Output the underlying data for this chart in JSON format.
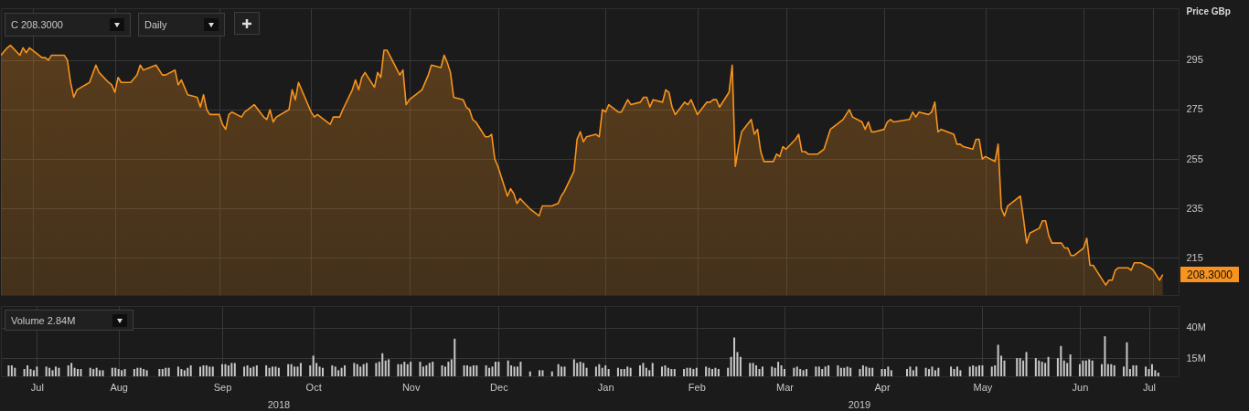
{
  "chart_data": [
    {
      "type": "area",
      "ylabel": "Price GBp",
      "color": "#f7931e",
      "grid": true,
      "tick_labels": "y",
      "annotations": [
        "C 208.3000",
        "Daily",
        "208.3000"
      ],
      "xlim": [
        "2018-07-10",
        "2019-07-17"
      ],
      "ylim": [
        200,
        316
      ],
      "yticks": [
        215,
        235,
        255,
        275,
        295
      ],
      "x": [
        "2018-07-10",
        "2018-07-12",
        "2018-07-13",
        "2018-07-16",
        "2018-07-17",
        "2018-07-18",
        "2018-07-19",
        "2018-07-23",
        "2018-07-24",
        "2018-07-25",
        "2018-07-26",
        "2018-07-30",
        "2018-07-31",
        "2018-08-01",
        "2018-08-02",
        "2018-08-03",
        "2018-08-07",
        "2018-08-09",
        "2018-08-10",
        "2018-08-13",
        "2018-08-14",
        "2018-08-15",
        "2018-08-16",
        "2018-08-17",
        "2018-08-20",
        "2018-08-22",
        "2018-08-23",
        "2018-08-24",
        "2018-08-28",
        "2018-08-30",
        "2018-08-31",
        "2018-09-03",
        "2018-09-04",
        "2018-09-05",
        "2018-09-06",
        "2018-09-07",
        "2018-09-10",
        "2018-09-11",
        "2018-09-12",
        "2018-09-13",
        "2018-09-14",
        "2018-09-17",
        "2018-09-18",
        "2018-09-19",
        "2018-09-20",
        "2018-09-21",
        "2018-09-24",
        "2018-09-25",
        "2018-09-27",
        "2018-09-28",
        "2018-10-01",
        "2018-10-02",
        "2018-10-03",
        "2018-10-04",
        "2018-10-05",
        "2018-10-09",
        "2018-10-10",
        "2018-10-11",
        "2018-10-12",
        "2018-10-16",
        "2018-10-17",
        "2018-10-18",
        "2018-10-19",
        "2018-10-22",
        "2018-10-23",
        "2018-10-25",
        "2018-10-26",
        "2018-10-29",
        "2018-10-30",
        "2018-10-31",
        "2018-11-01",
        "2018-11-02",
        "2018-11-05",
        "2018-11-06",
        "2018-11-07",
        "2018-11-08",
        "2018-11-09",
        "2018-11-13",
        "2018-11-14",
        "2018-11-15",
        "2018-11-16",
        "2018-11-20",
        "2018-11-22",
        "2018-11-23",
        "2018-11-26",
        "2018-11-27",
        "2018-11-28",
        "2018-11-29",
        "2018-11-30",
        "2018-12-03",
        "2018-12-04",
        "2018-12-05",
        "2018-12-06",
        "2018-12-07",
        "2018-12-10",
        "2018-12-11",
        "2018-12-12",
        "2018-12-13",
        "2018-12-14",
        "2018-12-17",
        "2018-12-18",
        "2018-12-19",
        "2018-12-20",
        "2018-12-21",
        "2018-12-24",
        "2018-12-27",
        "2018-12-28",
        "2018-12-31",
        "2019-01-02",
        "2019-01-03",
        "2019-01-04",
        "2019-01-07",
        "2019-01-08",
        "2019-01-09",
        "2019-01-10",
        "2019-01-11",
        "2019-01-14",
        "2019-01-15",
        "2019-01-16",
        "2019-01-17",
        "2019-01-18",
        "2019-01-21",
        "2019-01-22",
        "2019-01-24",
        "2019-01-25",
        "2019-01-28",
        "2019-01-29",
        "2019-01-30",
        "2019-01-31",
        "2019-02-01",
        "2019-02-04",
        "2019-02-05",
        "2019-02-06",
        "2019-02-07",
        "2019-02-08",
        "2019-02-11",
        "2019-02-12",
        "2019-02-13",
        "2019-02-14",
        "2019-02-15",
        "2019-02-18",
        "2019-02-19",
        "2019-02-20",
        "2019-02-21",
        "2019-02-22",
        "2019-02-25",
        "2019-02-26",
        "2019-02-27",
        "2019-02-28",
        "2019-03-01",
        "2019-03-04",
        "2019-03-05",
        "2019-03-06",
        "2019-03-07",
        "2019-03-08",
        "2019-03-11",
        "2019-03-12",
        "2019-03-13",
        "2019-03-14",
        "2019-03-15",
        "2019-03-18",
        "2019-03-19",
        "2019-03-20",
        "2019-03-21",
        "2019-03-22",
        "2019-03-25",
        "2019-03-26",
        "2019-03-27",
        "2019-03-28",
        "2019-03-29",
        "2019-04-01",
        "2019-04-02",
        "2019-04-03",
        "2019-04-04",
        "2019-04-05",
        "2019-04-08",
        "2019-04-09",
        "2019-04-10",
        "2019-04-11",
        "2019-04-12",
        "2019-04-15",
        "2019-04-16",
        "2019-04-17",
        "2019-04-18",
        "2019-04-23",
        "2019-04-24",
        "2019-04-25",
        "2019-04-26",
        "2019-04-29",
        "2019-04-30",
        "2019-05-01",
        "2019-05-02",
        "2019-05-03",
        "2019-05-07",
        "2019-05-08",
        "2019-05-09",
        "2019-05-10",
        "2019-05-13",
        "2019-05-14",
        "2019-05-15",
        "2019-05-16",
        "2019-05-17",
        "2019-05-20",
        "2019-05-21",
        "2019-05-22",
        "2019-05-23",
        "2019-05-24",
        "2019-05-28",
        "2019-05-29",
        "2019-05-30",
        "2019-05-31",
        "2019-06-03",
        "2019-06-04",
        "2019-06-05",
        "2019-06-06",
        "2019-06-07",
        "2019-06-10",
        "2019-06-11",
        "2019-06-12",
        "2019-06-13",
        "2019-06-14",
        "2019-06-17",
        "2019-06-18",
        "2019-06-19",
        "2019-06-20",
        "2019-06-21",
        "2019-06-24",
        "2019-06-25",
        "2019-06-26",
        "2019-06-27",
        "2019-06-28",
        "2019-07-01",
        "2019-07-02",
        "2019-07-03",
        "2019-07-04",
        "2019-07-05",
        "2019-07-08",
        "2019-07-09",
        "2019-07-10",
        "2019-07-11",
        "2019-07-12"
      ],
      "values": [
        297,
        300,
        301,
        297,
        300,
        298,
        300,
        296,
        296,
        295,
        297,
        297,
        295,
        286,
        280,
        283,
        286,
        293,
        290,
        286,
        285,
        282,
        288,
        286,
        286,
        289,
        293,
        291,
        293,
        289,
        289,
        291,
        285,
        287,
        284,
        281,
        280,
        276,
        281,
        275,
        273,
        273,
        269,
        267,
        273,
        274,
        272,
        274,
        276,
        277,
        272,
        271,
        275,
        270,
        272,
        275,
        283,
        279,
        286,
        274,
        272,
        273,
        272,
        269,
        272,
        272,
        275,
        283,
        287,
        283,
        288,
        290,
        284,
        290,
        288,
        299,
        299,
        289,
        291,
        277,
        279,
        283,
        289,
        293,
        292,
        297,
        294,
        290,
        280,
        279,
        276,
        275,
        271,
        270,
        264,
        264,
        265,
        255,
        252,
        240,
        243,
        241,
        237,
        239,
        235,
        232,
        236,
        236,
        237,
        240,
        242,
        250,
        263,
        266,
        262,
        264,
        265,
        264,
        275,
        274,
        277,
        274,
        274,
        279,
        277,
        278,
        280,
        280,
        276,
        279,
        278,
        283,
        282,
        276,
        273,
        278,
        277,
        279,
        276,
        273,
        278,
        278,
        279,
        279,
        276,
        282,
        293,
        252,
        260,
        266,
        271,
        265,
        267,
        258,
        254,
        254,
        257,
        256,
        260,
        259,
        263,
        265,
        258,
        258,
        257,
        257,
        258,
        259,
        263,
        267,
        270,
        271,
        273,
        275,
        272,
        270,
        267,
        270,
        266,
        266,
        267,
        270,
        271,
        270,
        271,
        274,
        272,
        274,
        273,
        274,
        278,
        266,
        267,
        265,
        261,
        261,
        260,
        259,
        263,
        263,
        255,
        256,
        254,
        261,
        235,
        232,
        236,
        240,
        231,
        221,
        225,
        227,
        230,
        230,
        224,
        221,
        221,
        219,
        219,
        216,
        216,
        219,
        223,
        212,
        212,
        210,
        204,
        206,
        206,
        210,
        211,
        211,
        210,
        213,
        213,
        213,
        211,
        210,
        208,
        206,
        208.3
      ]
    },
    {
      "type": "bar",
      "title": "Volume 2.84M",
      "color": "#c8c8c8",
      "grid": true,
      "annotations": [
        "2018",
        "2019"
      ],
      "xlim": [
        "2018-07-10",
        "2019-07-17"
      ],
      "xticks": [
        {
          "value": "2018-07-20",
          "label": "Jul"
        },
        {
          "value": "2018-08-15",
          "label": "Aug"
        },
        {
          "value": "2018-09-17",
          "label": "Sep"
        },
        {
          "value": "2018-10-16",
          "label": "Oct"
        },
        {
          "value": "2018-11-16",
          "label": "Nov"
        },
        {
          "value": "2018-12-14",
          "label": "Dec"
        },
        {
          "value": "2019-01-17",
          "label": "Jan"
        },
        {
          "value": "2019-02-15",
          "label": "Feb"
        },
        {
          "value": "2019-03-15",
          "label": "Mar"
        },
        {
          "value": "2019-04-15",
          "label": "Apr"
        },
        {
          "value": "2019-05-17",
          "label": "May"
        },
        {
          "value": "2019-06-17",
          "label": "Jun"
        },
        {
          "value": "2019-07-09",
          "label": "Jul"
        }
      ],
      "ylim": [
        0,
        58
      ],
      "yticks": [
        {
          "value": 15,
          "label": "15M"
        },
        {
          "value": 40,
          "label": "40M"
        }
      ],
      "x": [
        "2018-07-11",
        "2018-07-12",
        "2018-07-13",
        "2018-07-16",
        "2018-07-17",
        "2018-07-18",
        "2018-07-19",
        "2018-07-20",
        "2018-07-23",
        "2018-07-24",
        "2018-07-25",
        "2018-07-26",
        "2018-07-27",
        "2018-07-30",
        "2018-07-31",
        "2018-08-01",
        "2018-08-02",
        "2018-08-03",
        "2018-08-06",
        "2018-08-07",
        "2018-08-08",
        "2018-08-09",
        "2018-08-10",
        "2018-08-13",
        "2018-08-14",
        "2018-08-15",
        "2018-08-16",
        "2018-08-17",
        "2018-08-20",
        "2018-08-21",
        "2018-08-22",
        "2018-08-23",
        "2018-08-24",
        "2018-08-28",
        "2018-08-29",
        "2018-08-30",
        "2018-08-31",
        "2018-09-03",
        "2018-09-04",
        "2018-09-05",
        "2018-09-06",
        "2018-09-07",
        "2018-09-10",
        "2018-09-11",
        "2018-09-12",
        "2018-09-13",
        "2018-09-14",
        "2018-09-17",
        "2018-09-18",
        "2018-09-19",
        "2018-09-20",
        "2018-09-21",
        "2018-09-24",
        "2018-09-25",
        "2018-09-26",
        "2018-09-27",
        "2018-09-28",
        "2018-10-01",
        "2018-10-02",
        "2018-10-03",
        "2018-10-04",
        "2018-10-05",
        "2018-10-08",
        "2018-10-09",
        "2018-10-10",
        "2018-10-11",
        "2018-10-12",
        "2018-10-15",
        "2018-10-16",
        "2018-10-17",
        "2018-10-18",
        "2018-10-19",
        "2018-10-22",
        "2018-10-23",
        "2018-10-24",
        "2018-10-25",
        "2018-10-26",
        "2018-10-29",
        "2018-10-30",
        "2018-10-31",
        "2018-11-01",
        "2018-11-02",
        "2018-11-05",
        "2018-11-06",
        "2018-11-07",
        "2018-11-08",
        "2018-11-09",
        "2018-11-12",
        "2018-11-13",
        "2018-11-14",
        "2018-11-15",
        "2018-11-16",
        "2018-11-19",
        "2018-11-20",
        "2018-11-21",
        "2018-11-22",
        "2018-11-23",
        "2018-11-26",
        "2018-11-27",
        "2018-11-28",
        "2018-11-29",
        "2018-11-30",
        "2018-12-03",
        "2018-12-04",
        "2018-12-05",
        "2018-12-06",
        "2018-12-07",
        "2018-12-10",
        "2018-12-11",
        "2018-12-12",
        "2018-12-13",
        "2018-12-14",
        "2018-12-17",
        "2018-12-18",
        "2018-12-19",
        "2018-12-20",
        "2018-12-21",
        "2018-12-24",
        "2018-12-27",
        "2018-12-28",
        "2018-12-31",
        "2019-01-02",
        "2019-01-03",
        "2019-01-04",
        "2019-01-07",
        "2019-01-08",
        "2019-01-09",
        "2019-01-10",
        "2019-01-11",
        "2019-01-14",
        "2019-01-15",
        "2019-01-16",
        "2019-01-17",
        "2019-01-18",
        "2019-01-21",
        "2019-01-22",
        "2019-01-23",
        "2019-01-24",
        "2019-01-25",
        "2019-01-28",
        "2019-01-29",
        "2019-01-30",
        "2019-01-31",
        "2019-02-01",
        "2019-02-04",
        "2019-02-05",
        "2019-02-06",
        "2019-02-07",
        "2019-02-08",
        "2019-02-11",
        "2019-02-12",
        "2019-02-13",
        "2019-02-14",
        "2019-02-15",
        "2019-02-18",
        "2019-02-19",
        "2019-02-20",
        "2019-02-21",
        "2019-02-22",
        "2019-02-25",
        "2019-02-26",
        "2019-02-27",
        "2019-02-28",
        "2019-03-01",
        "2019-03-04",
        "2019-03-05",
        "2019-03-06",
        "2019-03-07",
        "2019-03-08",
        "2019-03-11",
        "2019-03-12",
        "2019-03-13",
        "2019-03-14",
        "2019-03-15",
        "2019-03-18",
        "2019-03-19",
        "2019-03-20",
        "2019-03-21",
        "2019-03-22",
        "2019-03-25",
        "2019-03-26",
        "2019-03-27",
        "2019-03-28",
        "2019-03-29",
        "2019-04-01",
        "2019-04-02",
        "2019-04-03",
        "2019-04-04",
        "2019-04-05",
        "2019-04-08",
        "2019-04-09",
        "2019-04-10",
        "2019-04-11",
        "2019-04-12",
        "2019-04-15",
        "2019-04-16",
        "2019-04-17",
        "2019-04-18",
        "2019-04-23",
        "2019-04-24",
        "2019-04-25",
        "2019-04-26",
        "2019-04-29",
        "2019-04-30",
        "2019-05-01",
        "2019-05-02",
        "2019-05-03",
        "2019-05-07",
        "2019-05-08",
        "2019-05-09",
        "2019-05-10",
        "2019-05-13",
        "2019-05-14",
        "2019-05-15",
        "2019-05-16",
        "2019-05-17",
        "2019-05-20",
        "2019-05-21",
        "2019-05-22",
        "2019-05-23",
        "2019-05-24",
        "2019-05-28",
        "2019-05-29",
        "2019-05-30",
        "2019-05-31",
        "2019-06-03",
        "2019-06-04",
        "2019-06-05",
        "2019-06-06",
        "2019-06-07",
        "2019-06-10",
        "2019-06-11",
        "2019-06-12",
        "2019-06-13",
        "2019-06-14",
        "2019-06-17",
        "2019-06-18",
        "2019-06-19",
        "2019-06-20",
        "2019-06-21",
        "2019-06-24",
        "2019-06-25",
        "2019-06-26",
        "2019-06-27",
        "2019-06-28",
        "2019-07-01",
        "2019-07-02",
        "2019-07-03",
        "2019-07-04",
        "2019-07-05",
        "2019-07-08",
        "2019-07-09",
        "2019-07-10",
        "2019-07-11",
        "2019-07-12"
      ],
      "values": [
        9,
        9,
        7,
        6,
        9,
        6,
        5,
        8,
        8,
        7,
        5,
        8,
        7,
        9,
        11,
        7,
        6,
        6,
        7,
        6,
        7,
        5,
        5,
        7,
        7,
        6,
        5,
        6,
        6,
        7,
        7,
        6,
        5,
        6,
        6,
        7,
        7,
        8,
        6,
        5,
        7,
        9,
        8,
        9,
        9,
        8,
        8,
        10,
        10,
        9,
        11,
        11,
        8,
        9,
        7,
        8,
        9,
        9,
        7,
        8,
        8,
        7,
        10,
        10,
        8,
        8,
        11,
        9,
        17,
        11,
        8,
        7,
        9,
        8,
        5,
        7,
        9,
        11,
        10,
        8,
        10,
        11,
        11,
        12,
        19,
        13,
        14,
        10,
        10,
        12,
        10,
        12,
        12,
        8,
        9,
        11,
        12,
        9,
        8,
        12,
        14,
        31,
        9,
        9,
        8,
        9,
        9,
        9,
        7,
        8,
        12,
        12,
        13,
        9,
        8,
        8,
        12,
        4,
        5,
        5,
        4,
        10,
        8,
        8,
        14,
        11,
        12,
        11,
        7,
        8,
        10,
        7,
        9,
        6,
        7,
        6,
        6,
        8,
        7,
        9,
        11,
        7,
        5,
        11,
        8,
        9,
        7,
        6,
        6,
        6,
        7,
        7,
        6,
        7,
        8,
        7,
        6,
        7,
        6,
        7,
        16,
        32,
        20,
        16,
        11,
        11,
        9,
        6,
        8,
        8,
        7,
        12,
        9,
        6,
        7,
        8,
        6,
        5,
        6,
        8,
        8,
        6,
        8,
        9,
        9,
        7,
        7,
        8,
        7,
        6,
        9,
        8,
        7,
        7,
        6,
        6,
        8,
        5,
        6,
        8,
        5,
        8,
        7,
        6,
        8,
        5,
        7,
        8,
        6,
        8,
        5,
        8,
        9,
        8,
        9,
        9,
        8,
        9,
        26,
        17,
        13,
        15,
        15,
        13,
        20,
        15,
        13,
        12,
        11,
        16,
        15,
        25,
        13,
        11,
        18,
        10,
        13,
        13,
        14,
        13,
        10,
        33,
        10,
        10,
        9,
        8,
        28,
        6,
        9,
        9,
        8,
        6,
        10,
        5,
        3
      ]
    }
  ]
}
